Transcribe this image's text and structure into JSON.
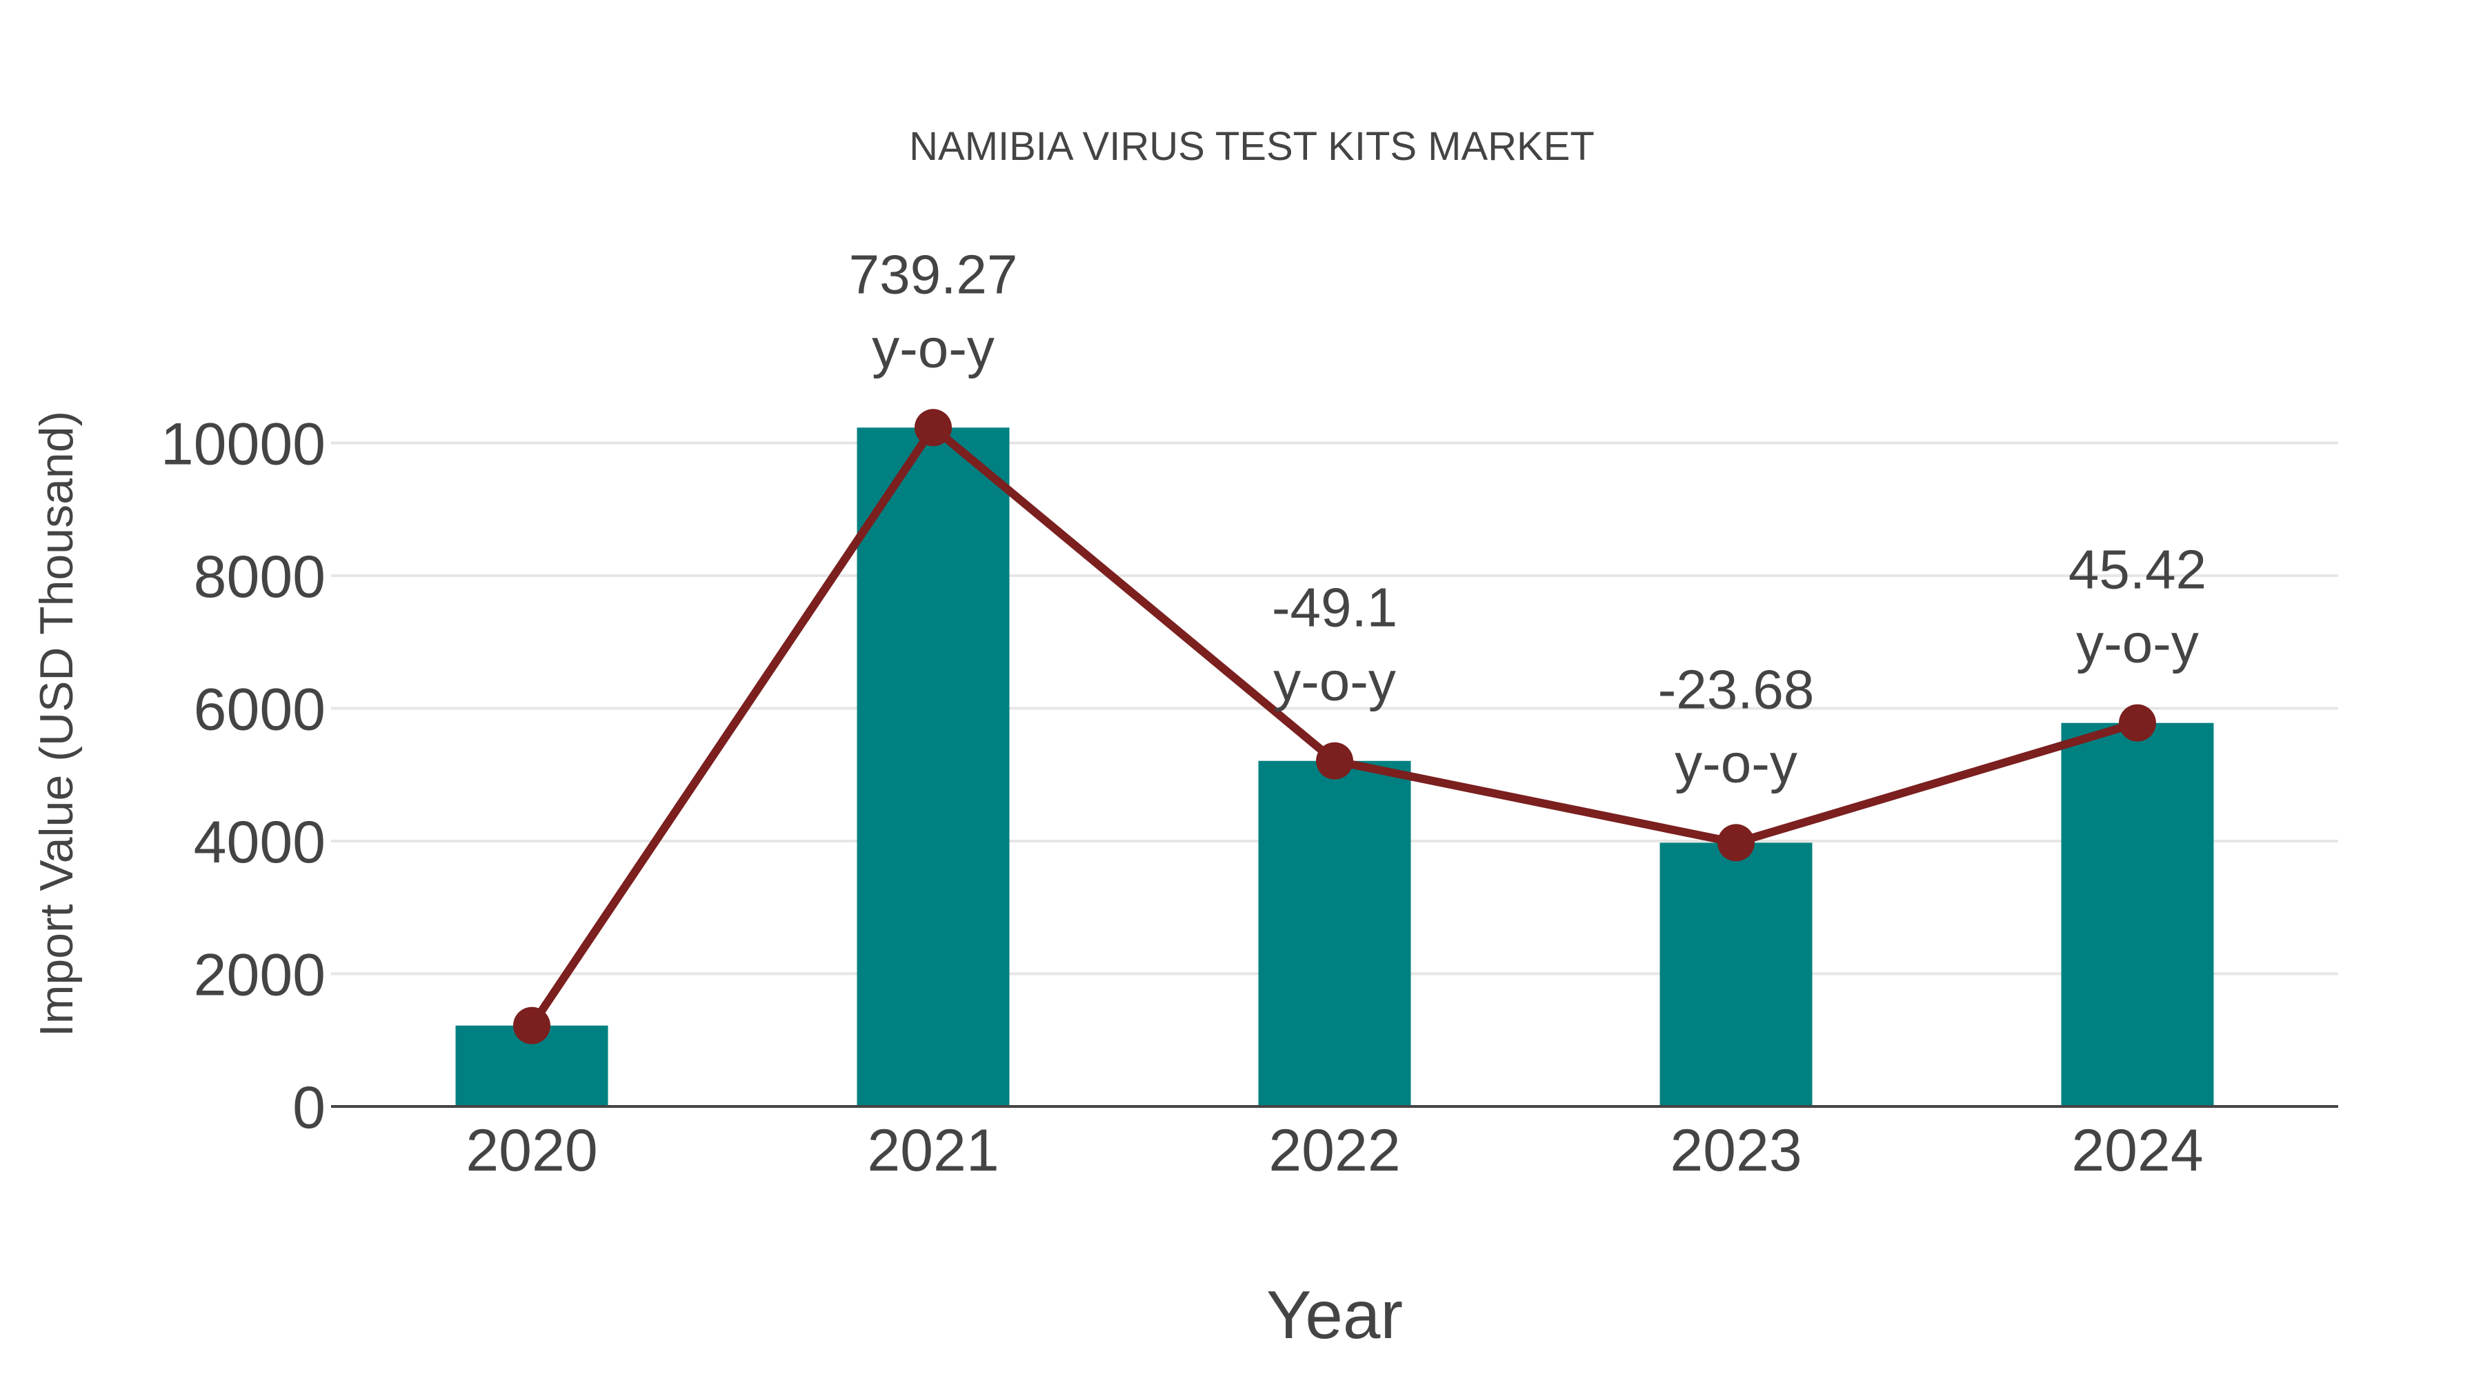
{
  "chart_data": {
    "type": "bar+line",
    "title": "NAMIBIA VIRUS TEST KITS MARKET",
    "xlabel": "Year",
    "ylabel": "Import Value (USD Thousand)",
    "categories": [
      "2020",
      "2021",
      "2022",
      "2023",
      "2024"
    ],
    "series": [
      {
        "name": "Import Value",
        "type": "bar",
        "color": "#008080",
        "values": [
          1219,
          10231,
          5208,
          3975,
          5780
        ]
      },
      {
        "name": "Import Value (line)",
        "type": "line",
        "color": "#7B1F1F",
        "values": [
          1219,
          10231,
          5208,
          3975,
          5780
        ]
      }
    ],
    "annotations": [
      {
        "category": "2021",
        "value": "739.27",
        "suffix": "y-o-y"
      },
      {
        "category": "2022",
        "value": "-49.1",
        "suffix": "y-o-y"
      },
      {
        "category": "2023",
        "value": "-23.68",
        "suffix": "y-o-y"
      },
      {
        "category": "2024",
        "value": "45.42",
        "suffix": "y-o-y"
      }
    ],
    "yticks": [
      "0",
      "2000",
      "4000",
      "6000",
      "8000",
      "10000"
    ],
    "ylim": [
      0,
      11000
    ],
    "grid": true,
    "legend": "none"
  },
  "colors": {
    "bar": "#008080",
    "line": "#7B1F1F",
    "text": "#444444",
    "grid": "#E6E6E6",
    "axis": "#444444"
  }
}
